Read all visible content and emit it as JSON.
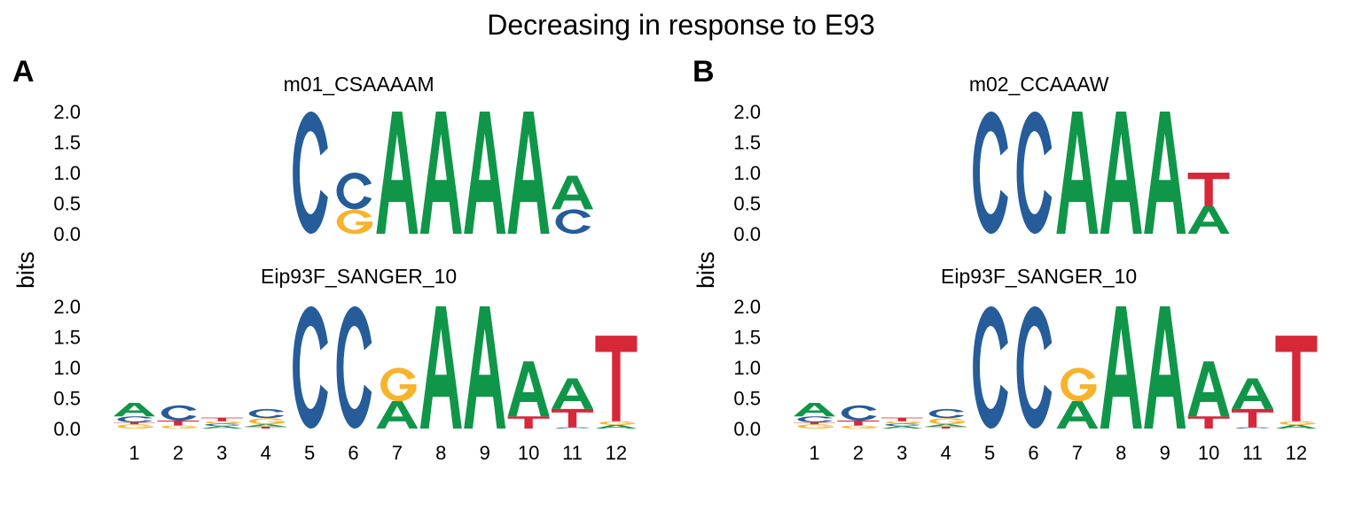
{
  "figure": {
    "title": "Decreasing in response to E93"
  },
  "colors": {
    "A": "#109648",
    "C": "#255C99",
    "G": "#F7B32B",
    "T": "#D62839",
    "text": "#000000"
  },
  "chart_data": [
    {
      "panel_letter": "A",
      "type": "sequence-logo",
      "ylabel": "bits",
      "ylim": [
        0,
        2
      ],
      "yticks": [
        "0.0",
        "0.5",
        "1.0",
        "1.5",
        "2.0"
      ],
      "xticks": [
        "1",
        "2",
        "3",
        "4",
        "5",
        "6",
        "7",
        "8",
        "9",
        "10",
        "11",
        "12"
      ],
      "logos": [
        {
          "title": "m01_CSAAAAM",
          "start": 5,
          "columns": [
            [
              [
                "C",
                2.0
              ]
            ],
            [
              [
                "G",
                0.4
              ],
              [
                "C",
                0.6
              ]
            ],
            [
              [
                "A",
                2.0
              ]
            ],
            [
              [
                "A",
                2.0
              ]
            ],
            [
              [
                "A",
                2.0
              ]
            ],
            [
              [
                "A",
                2.0
              ]
            ],
            [
              [
                "C",
                0.4
              ],
              [
                "A",
                0.55
              ]
            ]
          ]
        },
        {
          "title": "Eip93F_SANGER_10",
          "start": 1,
          "columns": [
            [
              [
                "G",
                0.07
              ],
              [
                "T",
                0.03
              ],
              [
                "C",
                0.1
              ],
              [
                "A",
                0.22
              ]
            ],
            [
              [
                "G",
                0.05
              ],
              [
                "T",
                0.08
              ],
              [
                "C",
                0.25
              ]
            ],
            [
              [
                "A",
                0.04
              ],
              [
                "C",
                0.04
              ],
              [
                "G",
                0.04
              ],
              [
                "T",
                0.06
              ]
            ],
            [
              [
                "T",
                0.03
              ],
              [
                "A",
                0.04
              ],
              [
                "G",
                0.1
              ],
              [
                "C",
                0.15
              ]
            ],
            [
              [
                "C",
                2.0
              ]
            ],
            [
              [
                "C",
                2.0
              ]
            ],
            [
              [
                "A",
                0.45
              ],
              [
                "G",
                0.55
              ]
            ],
            [
              [
                "A",
                2.0
              ]
            ],
            [
              [
                "A",
                2.0
              ]
            ],
            [
              [
                "T",
                0.2
              ],
              [
                "A",
                0.9
              ]
            ],
            [
              [
                "C",
                0.02
              ],
              [
                "T",
                0.3
              ],
              [
                "A",
                0.5
              ]
            ],
            [
              [
                "A",
                0.06
              ],
              [
                "G",
                0.06
              ],
              [
                "T",
                1.4
              ]
            ]
          ]
        }
      ]
    },
    {
      "panel_letter": "B",
      "type": "sequence-logo",
      "ylabel": "bits",
      "ylim": [
        0,
        2
      ],
      "yticks": [
        "0.0",
        "0.5",
        "1.0",
        "1.5",
        "2.0"
      ],
      "xticks": [
        "1",
        "2",
        "3",
        "4",
        "5",
        "6",
        "7",
        "8",
        "9",
        "10",
        "11",
        "12"
      ],
      "logos": [
        {
          "title": "m02_CCAAAW",
          "start": 5,
          "columns": [
            [
              [
                "C",
                2.0
              ]
            ],
            [
              [
                "C",
                2.0
              ]
            ],
            [
              [
                "A",
                2.0
              ]
            ],
            [
              [
                "A",
                2.0
              ]
            ],
            [
              [
                "A",
                2.0
              ]
            ],
            [
              [
                "A",
                0.45
              ],
              [
                "T",
                0.55
              ]
            ]
          ]
        },
        {
          "title": "Eip93F_SANGER_10",
          "start": 1,
          "columns": [
            [
              [
                "G",
                0.07
              ],
              [
                "T",
                0.03
              ],
              [
                "C",
                0.1
              ],
              [
                "A",
                0.22
              ]
            ],
            [
              [
                "G",
                0.05
              ],
              [
                "T",
                0.08
              ],
              [
                "C",
                0.25
              ]
            ],
            [
              [
                "A",
                0.04
              ],
              [
                "C",
                0.04
              ],
              [
                "G",
                0.04
              ],
              [
                "T",
                0.06
              ]
            ],
            [
              [
                "T",
                0.03
              ],
              [
                "A",
                0.04
              ],
              [
                "G",
                0.1
              ],
              [
                "C",
                0.15
              ]
            ],
            [
              [
                "C",
                2.0
              ]
            ],
            [
              [
                "C",
                2.0
              ]
            ],
            [
              [
                "A",
                0.45
              ],
              [
                "G",
                0.55
              ]
            ],
            [
              [
                "A",
                2.0
              ]
            ],
            [
              [
                "A",
                2.0
              ]
            ],
            [
              [
                "T",
                0.2
              ],
              [
                "A",
                0.9
              ]
            ],
            [
              [
                "C",
                0.02
              ],
              [
                "T",
                0.3
              ],
              [
                "A",
                0.5
              ]
            ],
            [
              [
                "A",
                0.06
              ],
              [
                "G",
                0.06
              ],
              [
                "T",
                1.4
              ]
            ]
          ]
        }
      ]
    }
  ]
}
